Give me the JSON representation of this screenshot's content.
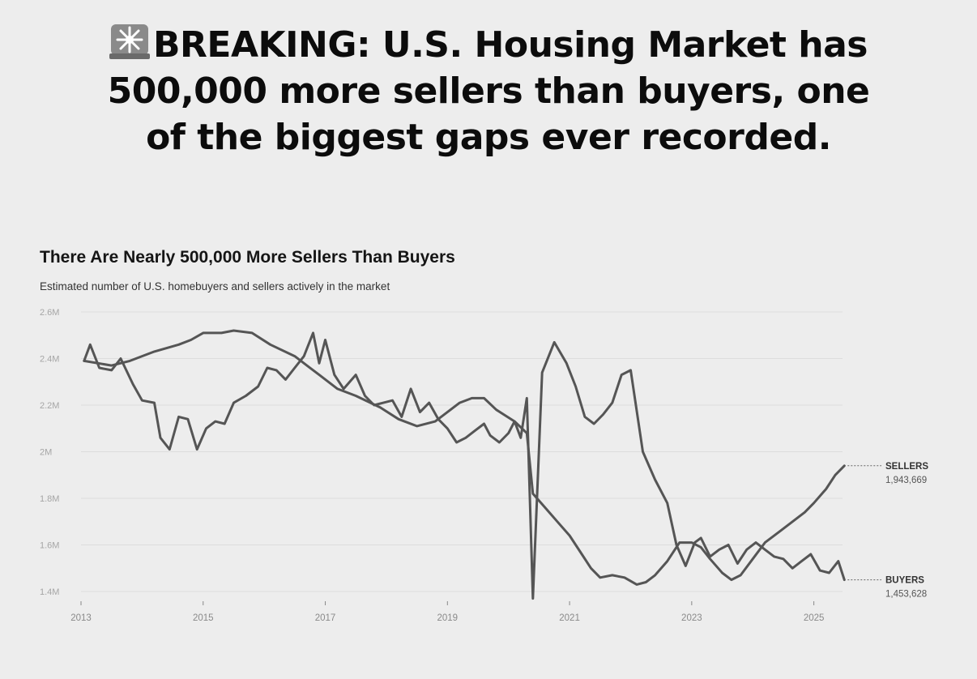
{
  "headline": {
    "icon": "rotating-light-icon",
    "line1": "BREAKING: U.S. Housing Market has",
    "line2": "500,000 more sellers than buyers, one",
    "line3": "of the biggest gaps ever recorded."
  },
  "chart_data": {
    "type": "line",
    "title": "There Are Nearly 500,000 More Sellers Than Buyers",
    "subtitle": "Estimated number of U.S. homebuyers and sellers actively in the market",
    "xlabel": "",
    "ylabel": "",
    "xlim": [
      2013,
      2026
    ],
    "ylim": [
      1.4,
      2.6
    ],
    "y_ticks": [
      {
        "value": 2.6,
        "label": "2.6M"
      },
      {
        "value": 2.4,
        "label": "2.4M"
      },
      {
        "value": 2.2,
        "label": "2.2M"
      },
      {
        "value": 2.0,
        "label": "2M"
      },
      {
        "value": 1.8,
        "label": "1.8M"
      },
      {
        "value": 1.6,
        "label": "1.6M"
      },
      {
        "value": 1.4,
        "label": "1.4M"
      }
    ],
    "x_ticks": [
      {
        "value": 2013,
        "label": "2013"
      },
      {
        "value": 2015,
        "label": "2015"
      },
      {
        "value": 2017,
        "label": "2017"
      },
      {
        "value": 2019,
        "label": "2019"
      },
      {
        "value": 2021,
        "label": "2021"
      },
      {
        "value": 2023,
        "label": "2023"
      },
      {
        "value": 2025,
        "label": "2025"
      }
    ],
    "grid": true,
    "color": "#555555",
    "series": [
      {
        "name": "SELLERS",
        "end_label": "SELLERS",
        "end_value": "1,943,669",
        "points": [
          [
            2013.05,
            2.39
          ],
          [
            2013.5,
            2.37
          ],
          [
            2013.8,
            2.39
          ],
          [
            2014.2,
            2.43
          ],
          [
            2014.6,
            2.46
          ],
          [
            2014.8,
            2.48
          ],
          [
            2015.0,
            2.51
          ],
          [
            2015.3,
            2.51
          ],
          [
            2015.5,
            2.52
          ],
          [
            2015.8,
            2.51
          ],
          [
            2016.1,
            2.46
          ],
          [
            2016.5,
            2.41
          ],
          [
            2016.9,
            2.33
          ],
          [
            2017.2,
            2.27
          ],
          [
            2017.5,
            2.24
          ],
          [
            2017.9,
            2.19
          ],
          [
            2018.2,
            2.14
          ],
          [
            2018.5,
            2.11
          ],
          [
            2018.8,
            2.13
          ],
          [
            2019.0,
            2.17
          ],
          [
            2019.2,
            2.21
          ],
          [
            2019.4,
            2.23
          ],
          [
            2019.6,
            2.23
          ],
          [
            2019.8,
            2.18
          ],
          [
            2020.1,
            2.13
          ],
          [
            2020.3,
            2.08
          ],
          [
            2020.4,
            1.82
          ],
          [
            2020.6,
            1.76
          ],
          [
            2020.8,
            1.7
          ],
          [
            2021.0,
            1.64
          ],
          [
            2021.2,
            1.56
          ],
          [
            2021.35,
            1.5
          ],
          [
            2021.5,
            1.46
          ],
          [
            2021.7,
            1.47
          ],
          [
            2021.9,
            1.46
          ],
          [
            2022.1,
            1.43
          ],
          [
            2022.25,
            1.44
          ],
          [
            2022.4,
            1.47
          ],
          [
            2022.6,
            1.53
          ],
          [
            2022.8,
            1.61
          ],
          [
            2023.0,
            1.61
          ],
          [
            2023.15,
            1.59
          ],
          [
            2023.3,
            1.54
          ],
          [
            2023.5,
            1.48
          ],
          [
            2023.65,
            1.45
          ],
          [
            2023.8,
            1.47
          ],
          [
            2024.0,
            1.54
          ],
          [
            2024.2,
            1.61
          ],
          [
            2024.45,
            1.66
          ],
          [
            2024.7,
            1.71
          ],
          [
            2024.85,
            1.74
          ],
          [
            2025.0,
            1.78
          ],
          [
            2025.2,
            1.84
          ],
          [
            2025.35,
            1.9
          ],
          [
            2025.5,
            1.94
          ]
        ]
      },
      {
        "name": "BUYERS",
        "end_label": "BUYERS",
        "end_value": "1,453,628",
        "points": [
          [
            2013.05,
            2.39
          ],
          [
            2013.15,
            2.46
          ],
          [
            2013.3,
            2.36
          ],
          [
            2013.5,
            2.35
          ],
          [
            2013.65,
            2.4
          ],
          [
            2013.85,
            2.29
          ],
          [
            2014.0,
            2.22
          ],
          [
            2014.2,
            2.21
          ],
          [
            2014.3,
            2.06
          ],
          [
            2014.45,
            2.01
          ],
          [
            2014.6,
            2.15
          ],
          [
            2014.75,
            2.14
          ],
          [
            2014.9,
            2.01
          ],
          [
            2015.05,
            2.1
          ],
          [
            2015.2,
            2.13
          ],
          [
            2015.35,
            2.12
          ],
          [
            2015.5,
            2.21
          ],
          [
            2015.7,
            2.24
          ],
          [
            2015.9,
            2.28
          ],
          [
            2016.05,
            2.36
          ],
          [
            2016.2,
            2.35
          ],
          [
            2016.35,
            2.31
          ],
          [
            2016.5,
            2.36
          ],
          [
            2016.65,
            2.41
          ],
          [
            2016.8,
            2.51
          ],
          [
            2016.9,
            2.38
          ],
          [
            2017.0,
            2.48
          ],
          [
            2017.15,
            2.33
          ],
          [
            2017.3,
            2.27
          ],
          [
            2017.5,
            2.33
          ],
          [
            2017.65,
            2.24
          ],
          [
            2017.8,
            2.2
          ],
          [
            2017.95,
            2.21
          ],
          [
            2018.1,
            2.22
          ],
          [
            2018.25,
            2.15
          ],
          [
            2018.4,
            2.27
          ],
          [
            2018.55,
            2.17
          ],
          [
            2018.7,
            2.21
          ],
          [
            2018.85,
            2.14
          ],
          [
            2019.0,
            2.1
          ],
          [
            2019.15,
            2.04
          ],
          [
            2019.3,
            2.06
          ],
          [
            2019.45,
            2.09
          ],
          [
            2019.6,
            2.12
          ],
          [
            2019.7,
            2.07
          ],
          [
            2019.85,
            2.04
          ],
          [
            2020.0,
            2.08
          ],
          [
            2020.1,
            2.13
          ],
          [
            2020.2,
            2.06
          ],
          [
            2020.3,
            2.23
          ],
          [
            2020.4,
            1.37
          ],
          [
            2020.55,
            2.34
          ],
          [
            2020.75,
            2.47
          ],
          [
            2020.95,
            2.38
          ],
          [
            2021.1,
            2.28
          ],
          [
            2021.25,
            2.15
          ],
          [
            2021.4,
            2.12
          ],
          [
            2021.55,
            2.16
          ],
          [
            2021.7,
            2.21
          ],
          [
            2021.85,
            2.33
          ],
          [
            2022.0,
            2.35
          ],
          [
            2022.2,
            2.0
          ],
          [
            2022.4,
            1.88
          ],
          [
            2022.6,
            1.78
          ],
          [
            2022.75,
            1.6
          ],
          [
            2022.9,
            1.51
          ],
          [
            2023.05,
            1.61
          ],
          [
            2023.15,
            1.63
          ],
          [
            2023.3,
            1.55
          ],
          [
            2023.45,
            1.58
          ],
          [
            2023.6,
            1.6
          ],
          [
            2023.75,
            1.52
          ],
          [
            2023.9,
            1.58
          ],
          [
            2024.05,
            1.61
          ],
          [
            2024.2,
            1.58
          ],
          [
            2024.35,
            1.55
          ],
          [
            2024.5,
            1.54
          ],
          [
            2024.65,
            1.5
          ],
          [
            2024.8,
            1.53
          ],
          [
            2024.95,
            1.56
          ],
          [
            2025.1,
            1.49
          ],
          [
            2025.25,
            1.48
          ],
          [
            2025.4,
            1.53
          ],
          [
            2025.5,
            1.45
          ]
        ]
      }
    ]
  }
}
